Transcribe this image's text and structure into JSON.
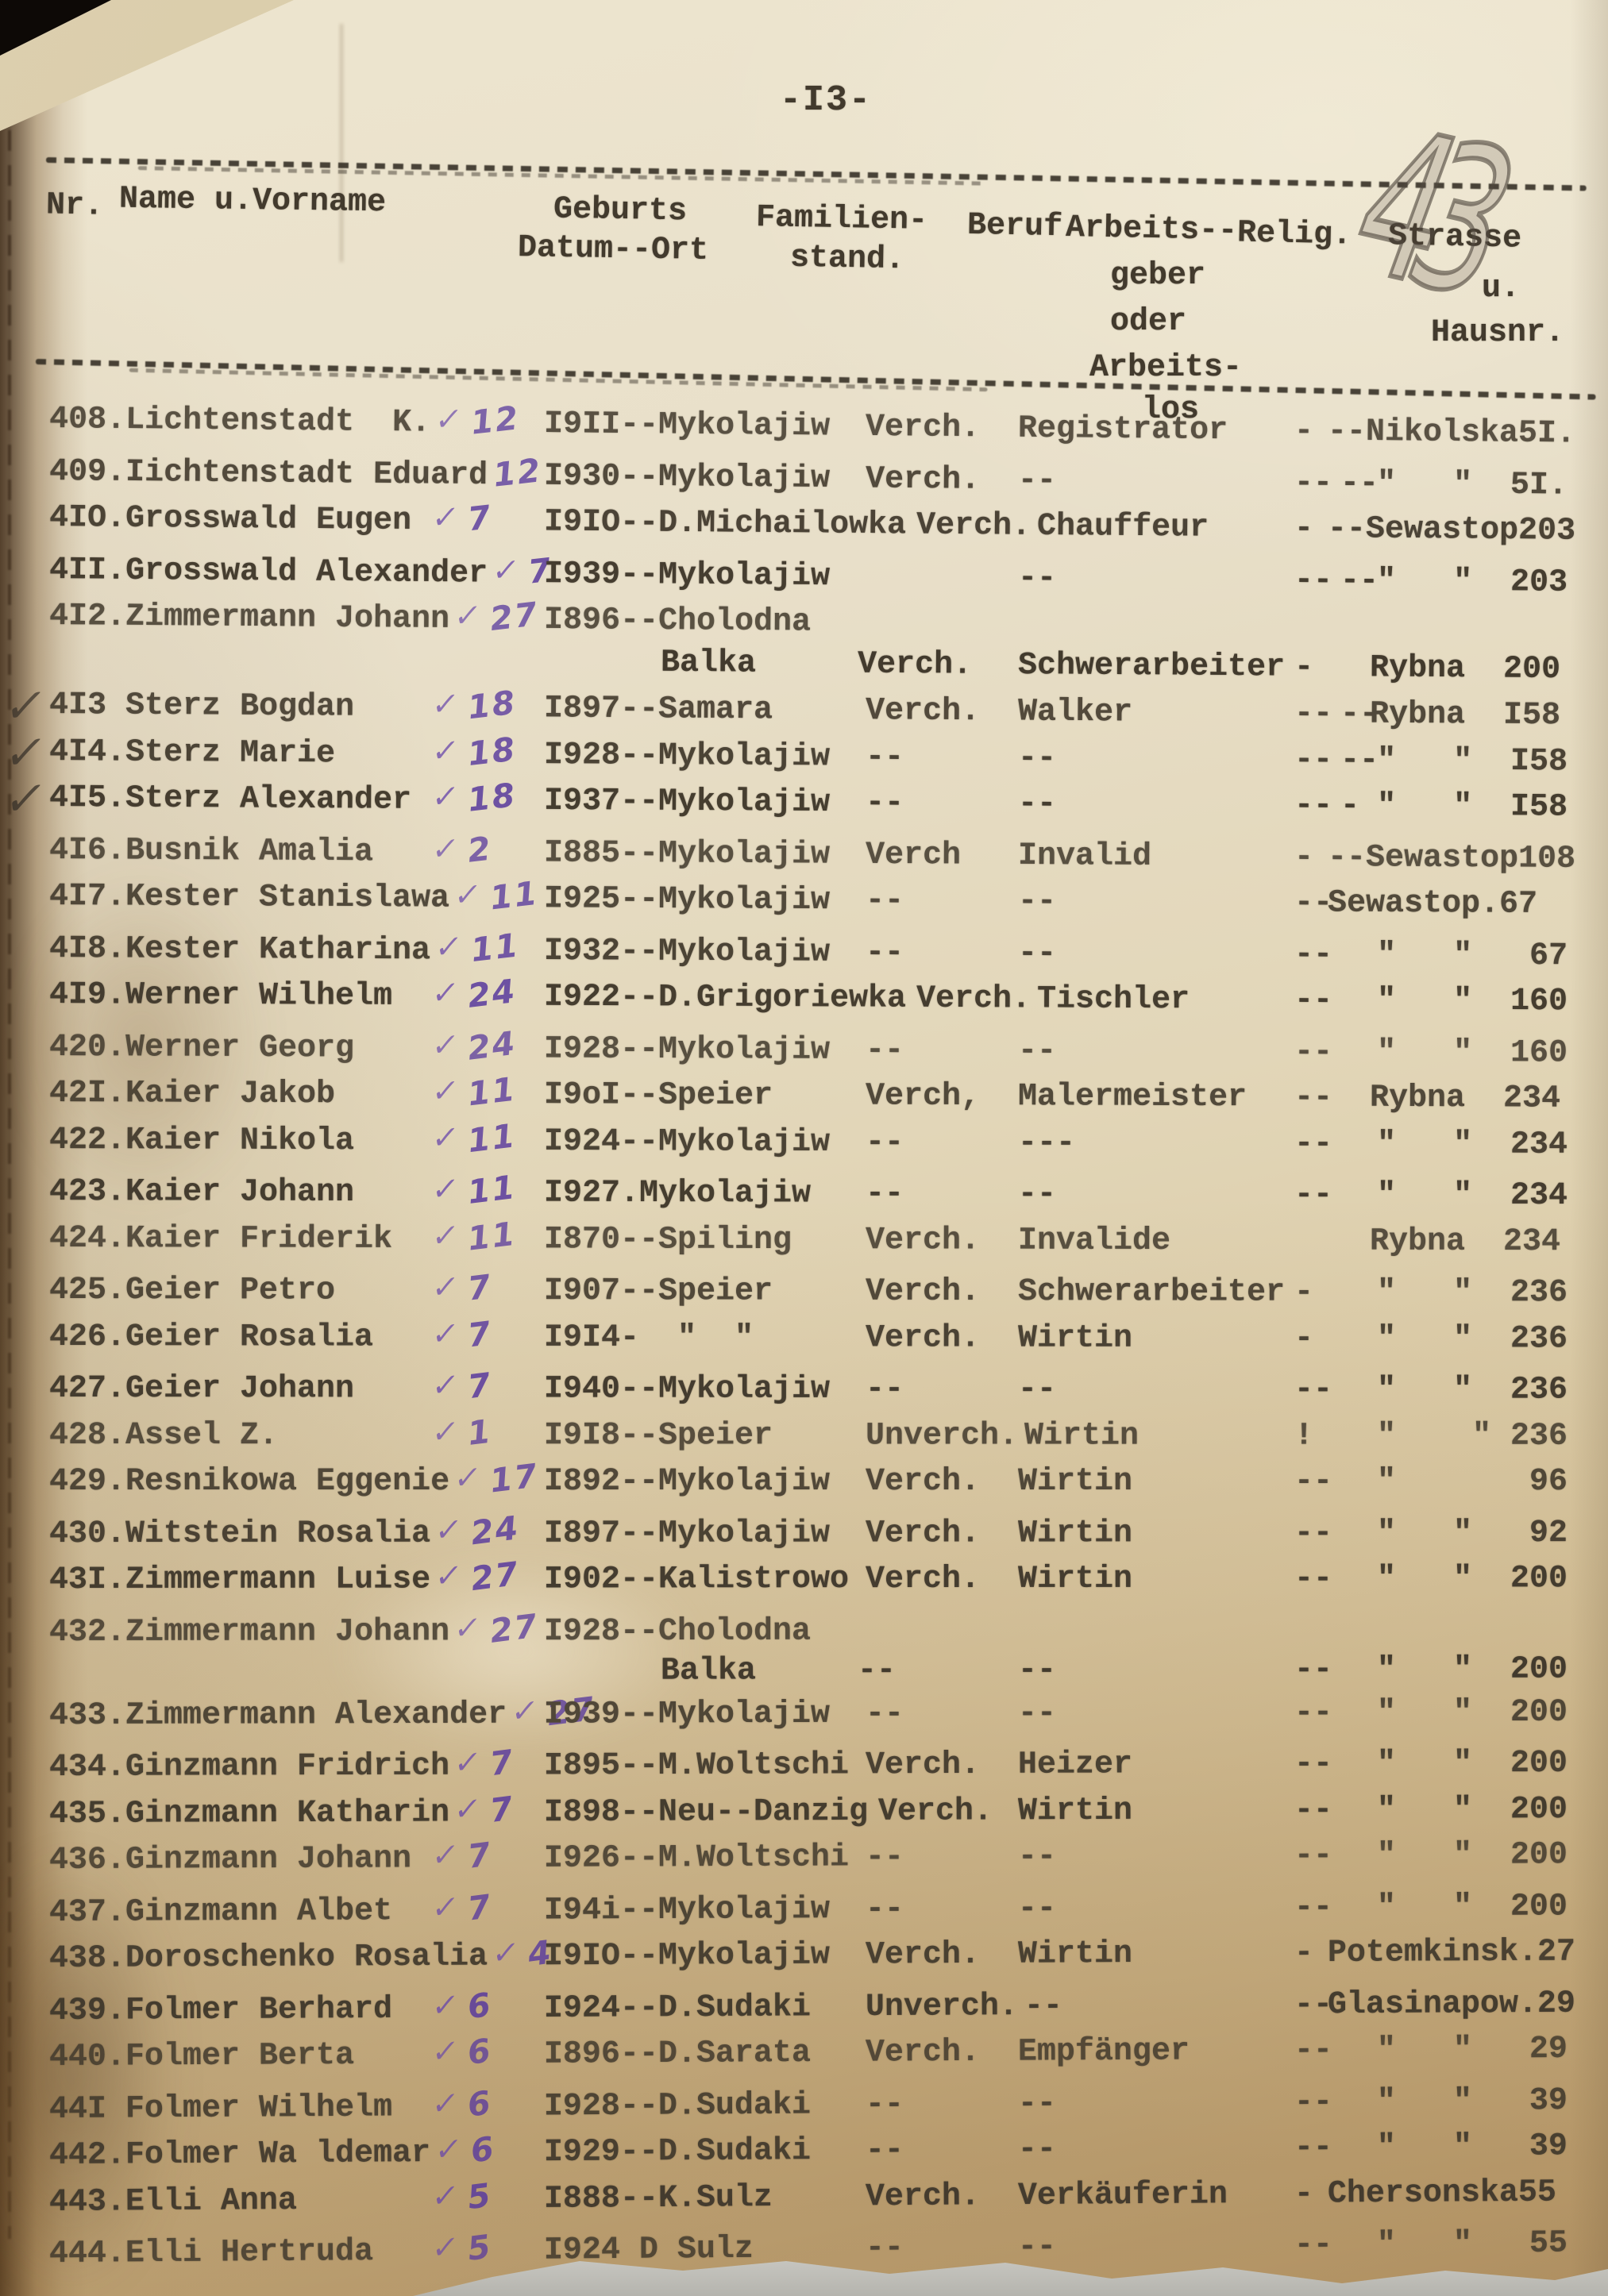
{
  "page": {
    "number_label": "-I3-",
    "pencil_note": "43"
  },
  "header": {
    "nr": "Nr.",
    "name": "Name u.Vorname",
    "geburts": "Geburts",
    "datum_ort": "Datum--Ort",
    "familien": "Familien-",
    "stand": "stand.",
    "beruf": "Beruf",
    "arbeits1": "Arbeits--",
    "geber": "geber",
    "oder": "oder",
    "arbeits2": "Arbeits-",
    "los": "los",
    "relig": "Relig.",
    "strasse": "Strasse",
    "u": "u.",
    "hausnr": "Hausnr."
  },
  "marks": {
    "check_glyph": "✓"
  },
  "colors": {
    "paper_light": "#ede5cf",
    "paper_dark": "#c5aa7c",
    "ink": "#423a2d",
    "hand_ink": "#5b3c9e",
    "pencil": "#504840",
    "red_mark": "#b03226",
    "background": "#0d0906",
    "below_paper": "#bdbcb6"
  },
  "rows": [
    {
      "name": "408.Lichtenstadt  K.",
      "check": true,
      "num": "12",
      "birth": "I9II--Mykolajiw",
      "fam": "Verch.",
      "beruf": "Registrator",
      "ag": "-",
      "rel": "",
      "str": "--Nikolska5I."
    },
    {
      "name": "409.Iichtenstadt Eduard",
      "check": false,
      "num": "12",
      "birth": "I930--Mykolajiw",
      "fam": "Verch.",
      "beruf": "--",
      "ag": "--",
      "rel": "--",
      "str": "\"   \"  5I."
    },
    {
      "name": "4IO.Grosswald Eugen",
      "check": true,
      "num": "7",
      "birth": "I9IO--D.Michailowka",
      "fam": "Verch.",
      "beruf": "Chauffeur",
      "ag": "-",
      "rel": "",
      "str": "--Sewastop203"
    },
    {
      "name": "4II.Grosswald Alexander",
      "check": true,
      "num": "7",
      "birth": "I939--Mykolajiw",
      "fam": "",
      "beruf": "--",
      "ag": "--",
      "rel": "--",
      "str": "\"   \"  203"
    },
    {
      "name": "4I2.Zimmermann Johann",
      "check": true,
      "num": "27",
      "birth": "I896--Cholodna",
      "fam": "",
      "beruf": "",
      "ag": "",
      "rel": "",
      "str": "",
      "cont": {
        "place": "Balka",
        "fam": "Verch.",
        "beruf": "Schwerarbeiter",
        "ag": "-",
        "str": "Rybna  200"
      }
    },
    {
      "name": "4I3 Sterz Bogdan",
      "check": true,
      "num": "18",
      "margin": true,
      "birth": "I897--Samara",
      "fam": "Verch.",
      "beruf": "Walker",
      "ag": "--",
      "rel": "--",
      "str": "Rybna  I58"
    },
    {
      "name": "4I4.Sterz Marie",
      "check": true,
      "num": "18",
      "margin": true,
      "birth": "I928--Mykolajiw",
      "fam": "--",
      "beruf": "--",
      "ag": "--",
      "rel": "--",
      "str": "\"   \"  I58"
    },
    {
      "name": "4I5.Sterz Alexander",
      "check": true,
      "num": "18",
      "margin": true,
      "birth": "I937--Mykolajiw",
      "fam": "--",
      "beruf": "--",
      "ag": "--",
      "rel": "-",
      "str": "\"   \"  I58"
    },
    {
      "name": "4I6.Busnik Amalia",
      "check": true,
      "num": "2",
      "birth": "I885--Mykolajiw",
      "fam": "Verch",
      "beruf": "Invalid",
      "ag": "-",
      "rel": "",
      "str": "--Sewastop108"
    },
    {
      "name": "4I7.Kester Stanislawa",
      "check": true,
      "num": "11",
      "birth": "I925--Mykolajiw",
      "fam": "--",
      "beruf": "--",
      "ag": "--",
      "rel": "",
      "str": "Sewastop.67"
    },
    {
      "name": "4I8.Kester Katharina",
      "check": true,
      "num": "11",
      "birth": "I932--Mykolajiw",
      "fam": "--",
      "beruf": "--",
      "ag": "--",
      "rel": "",
      "str": "\"   \"   67"
    },
    {
      "name": "4I9.Werner Wilhelm",
      "check": true,
      "num": "24",
      "birth": "I922--D.Grigoriewka",
      "fam": "Verch.",
      "beruf": "Tischler",
      "ag": "--",
      "rel": "",
      "str": "\"   \"  160"
    },
    {
      "name": "420.Werner Georg",
      "check": true,
      "num": "24",
      "birth": "I928--Mykolajiw",
      "fam": "--",
      "beruf": "--",
      "ag": "--",
      "rel": "",
      "str": "\"   \"  160"
    },
    {
      "name": "42I.Kaier Jakob",
      "check": true,
      "num": "11",
      "birth": "I9oI--Speier",
      "fam": "Verch,",
      "beruf": "Malermeister",
      "ag": "--",
      "rel": "",
      "str": "Rybna  234"
    },
    {
      "name": "422.Kaier Nikola",
      "check": true,
      "num": "11",
      "birth": "I924--Mykolajiw",
      "fam": "--",
      "beruf": "---",
      "ag": "--",
      "rel": "",
      "str": "\"   \"  234"
    },
    {
      "name": "423.Kaier Johann",
      "check": true,
      "num": "11",
      "birth": "I927.Mykolajiw",
      "fam": "--",
      "beruf": "--",
      "ag": "--",
      "rel": "",
      "str": "\"   \"  234"
    },
    {
      "name": "424.Kaier Friderik",
      "check": true,
      "num": "11",
      "birth": "I870--Spiling",
      "fam": "Verch.",
      "beruf": "Invalide",
      "ag": "",
      "rel": "",
      "str": "Rybna  234"
    },
    {
      "name": "425.Geier Petro",
      "check": true,
      "num": "7",
      "birth": "I907--Speier",
      "fam": "Verch.",
      "beruf": "Schwerarbeiter",
      "ag": "-",
      "rel": "",
      "str": "\"   \"  236"
    },
    {
      "name": "426.Geier Rosalia",
      "check": true,
      "num": "7",
      "birth": "I9I4-  \"  \"",
      "fam": "Verch.",
      "beruf": "Wirtin",
      "ag": "-",
      "rel": "",
      "str": "\"   \"  236"
    },
    {
      "name": "427.Geier Johann",
      "check": true,
      "num": "7",
      "birth": "I940--Mykolajiw",
      "fam": "--",
      "beruf": "--",
      "ag": "--",
      "rel": "",
      "str": "\"   \"  236"
    },
    {
      "name": "428.Assel Z.",
      "check": true,
      "num": "1",
      "birth": "I9I8--Speier",
      "fam": "Unverch.",
      "beruf": "Wirtin",
      "ag": "!",
      "rel": "",
      "str": "\"    \" 236"
    },
    {
      "name": "429.Resnikowa Eggenie",
      "check": true,
      "num": "17",
      "birth": "I892--Mykolajiw",
      "fam": "Verch.",
      "beruf": "Wirtin",
      "ag": "--",
      "rel": "",
      "str": "\"       96"
    },
    {
      "name": "430.Witstein Rosalia",
      "check": true,
      "num": "24",
      "birth": "I897--Mykolajiw",
      "fam": "Verch.",
      "beruf": "Wirtin",
      "ag": "--",
      "rel": "",
      "str": "\"   \"   92"
    },
    {
      "name": "43I.Zimmermann Luise",
      "check": true,
      "num": "27",
      "birth": "I902--Kalistrowo",
      "fam": "Verch.",
      "beruf": "Wirtin",
      "ag": "--",
      "rel": "",
      "str": "\"   \"  200"
    },
    {
      "name": "432.Zimmermann Johann",
      "check": true,
      "num": "27",
      "birth": "I928--Cholodna",
      "fam": "",
      "beruf": "",
      "ag": "",
      "rel": "",
      "str": "",
      "cont": {
        "place": "Balka",
        "fam": "--",
        "beruf": "--",
        "ag": "--",
        "str": "\"   \"  200"
      }
    },
    {
      "name": "433.Zimmermann Alexander",
      "check": true,
      "num": "27",
      "birth": "I939--Mykolajiw",
      "fam": "--",
      "beruf": "--",
      "ag": "--",
      "rel": "",
      "str": "\"   \"  200"
    },
    {
      "name": "434.Ginzmann Fridrich",
      "check": true,
      "num": "7",
      "birth": "I895--M.Woltschi",
      "fam": "Verch.",
      "beruf": "Heizer",
      "ag": "--",
      "rel": "",
      "str": "\"   \"  200"
    },
    {
      "name": "435.Ginzmann Katharin",
      "check": true,
      "num": "7",
      "birth": "I898--Neu--Danzig",
      "fam": "Verch.",
      "beruf": "Wirtin",
      "ag": "--",
      "rel": "",
      "str": "\"   \"  200"
    },
    {
      "name": "436.Ginzmann Johann",
      "check": true,
      "num": "7",
      "birth": "I926--M.Woltschi",
      "fam": "--",
      "beruf": "--",
      "ag": "--",
      "rel": "",
      "str": "\"   \"  200"
    },
    {
      "name": "437.Ginzmann Albet",
      "check": true,
      "num": "7",
      "birth": "I94i--Mykolajiw",
      "fam": "--",
      "beruf": "--",
      "ag": "--",
      "rel": "",
      "str": "\"   \"  200"
    },
    {
      "name": "438.Doroschenko Rosalia",
      "check": true,
      "num": "4",
      "birth": "I9IO--Mykolajiw",
      "fam": "Verch.",
      "beruf": "Wirtin",
      "ag": "-",
      "rel": "",
      "str": "Potemkinsk.27"
    },
    {
      "name": "439.Folmer Berhard",
      "check": true,
      "num": "6",
      "birth": "I924--D.Sudaki",
      "fam": "Unverch.",
      "beruf": "--",
      "ag": "--",
      "rel": "",
      "str": "Glasinapow.29"
    },
    {
      "name": "440.Folmer Berta",
      "check": true,
      "num": "6",
      "birth": "I896--D.Sarata",
      "fam": "Verch.",
      "beruf": "Empfänger",
      "ag": "--",
      "rel": "",
      "str": "\"   \"   29"
    },
    {
      "name": "44I Folmer Wilhelm",
      "check": true,
      "num": "6",
      "birth": "I928--D.Sudaki",
      "fam": "--",
      "beruf": "--",
      "ag": "--",
      "rel": "",
      "str": "\"   \"   39"
    },
    {
      "name": "442.Folmer Wa ldemar",
      "check": true,
      "num": "6",
      "birth": "I929--D.Sudaki",
      "fam": "--",
      "beruf": "--",
      "ag": "--",
      "rel": "",
      "str": "\"   \"   39"
    },
    {
      "name": "443.Elli Anna",
      "check": true,
      "num": "5",
      "birth": "I888--K.Sulz",
      "fam": "Verch.",
      "beruf": "Verkäuferin",
      "ag": "-",
      "rel": "",
      "str": "Chersonska55"
    },
    {
      "name": "444.Elli Hertruda",
      "check": true,
      "num": "5",
      "birth": "I924 D Sulz",
      "fam": "--",
      "beruf": "--",
      "ag": "--",
      "rel": "",
      "str": "\"   \"   55"
    }
  ]
}
